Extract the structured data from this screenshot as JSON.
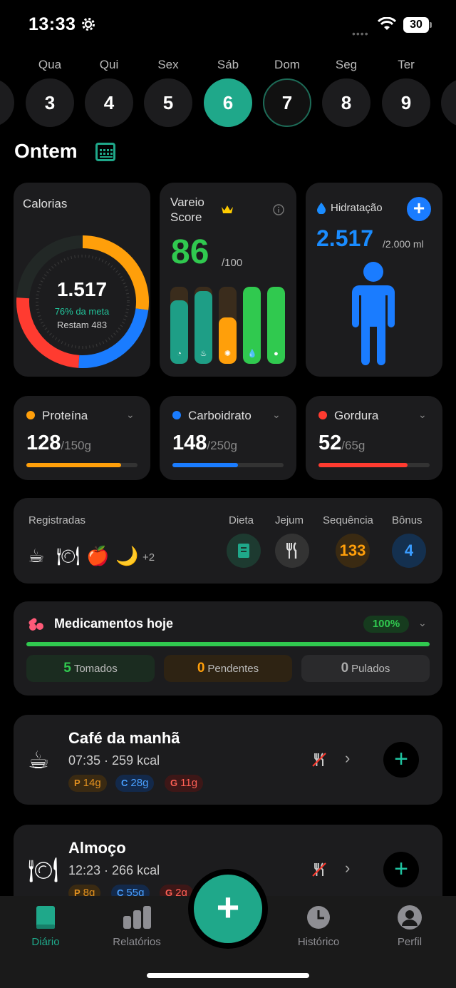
{
  "status": {
    "time": "13:33",
    "battery": "30"
  },
  "days": [
    {
      "label": "Qua",
      "num": "3"
    },
    {
      "label": "Qui",
      "num": "4"
    },
    {
      "label": "Sex",
      "num": "5"
    },
    {
      "label": "Sáb",
      "num": "6"
    },
    {
      "label": "Dom",
      "num": "7"
    },
    {
      "label": "Seg",
      "num": "8"
    },
    {
      "label": "Ter",
      "num": "9"
    }
  ],
  "title": "Ontem",
  "calories": {
    "title": "Calorias",
    "value": "1.517",
    "percent_text": "76% da meta",
    "remaining_text": "Restam 483",
    "progress": 0.76
  },
  "score": {
    "title_line1": "Vareio",
    "title_line2": "Score",
    "value": "86",
    "max": "/100",
    "bars": [
      {
        "icon": "pie-chart-icon",
        "level": 0.82,
        "color": "#1e9e86"
      },
      {
        "icon": "flame-icon",
        "level": 0.94,
        "color": "#1e9e86"
      },
      {
        "icon": "atom-icon",
        "level": 0.6,
        "color": "#ff9f0a"
      },
      {
        "icon": "drop-icon",
        "level": 1.0,
        "color": "#30c94f"
      },
      {
        "icon": "pills-icon",
        "level": 1.0,
        "color": "#30c94f"
      }
    ]
  },
  "hydration": {
    "title": "Hidratação",
    "value": "2.517",
    "max": "/2.000 ml"
  },
  "macros": [
    {
      "name": "Proteína",
      "value": "128",
      "max": "/150g",
      "color": "#ff9f0a",
      "fill": 0.85
    },
    {
      "name": "Carboidrato",
      "value": "148",
      "max": "/250g",
      "color": "#1a7cff",
      "fill": 0.59
    },
    {
      "name": "Gordura",
      "value": "52",
      "max": "/65g",
      "color": "#ff3b30",
      "fill": 0.8
    }
  ],
  "registered": {
    "label": "Registradas",
    "more": "+2",
    "diet_label": "Dieta",
    "fast_label": "Jejum",
    "streak_label": "Sequência",
    "streak_value": "133",
    "bonus_label": "Bônus",
    "bonus_value": "4"
  },
  "meds": {
    "title": "Medicamentos hoje",
    "badge": "100%",
    "taken_count": "5",
    "taken_label": "Tomados",
    "pending_count": "0",
    "pending_label": "Pendentes",
    "skipped_count": "0",
    "skipped_label": "Pulados"
  },
  "meals": [
    {
      "name": "Café da manhã",
      "sub": "07:35 · 259 kcal",
      "p": "14g",
      "c": "28g",
      "g": "11g"
    },
    {
      "name": "Almoço",
      "sub": "12:23 · 266 kcal",
      "p": "8g",
      "c": "55g",
      "g": "2g"
    }
  ],
  "macro_letters": {
    "p": "P",
    "c": "C",
    "g": "G"
  },
  "tabs": {
    "diary": "Diário",
    "reports": "Relatórios",
    "history": "Histórico",
    "profile": "Perfil"
  }
}
